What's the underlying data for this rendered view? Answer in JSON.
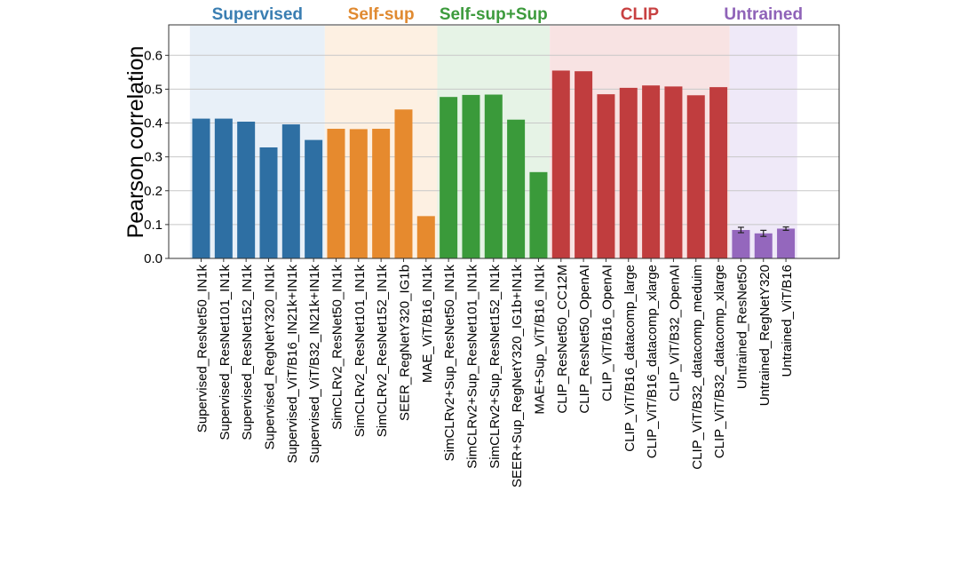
{
  "chart_data": {
    "type": "bar",
    "ylabel": "Pearson correlation",
    "ylim": [
      0,
      0.69
    ],
    "yticks": [
      "0.0",
      "0.1",
      "0.2",
      "0.3",
      "0.4",
      "0.5",
      "0.6"
    ],
    "grid": "horizontal",
    "groups": [
      {
        "name": "Supervised",
        "color": "#2e6fa3",
        "band_color": "#e8f0f8",
        "title_color": "#3a7eb2",
        "bars": [
          {
            "label": "Supervised_ResNet50_IN1k",
            "value": 0.413
          },
          {
            "label": "Supervised_ResNet101_IN1k",
            "value": 0.413
          },
          {
            "label": "Supervised_ResNet152_IN1k",
            "value": 0.404
          },
          {
            "label": "Supervised_RegNetY320_IN1k",
            "value": 0.328
          },
          {
            "label": "Supervised_ViT/B16_IN21k+IN1k",
            "value": 0.396
          },
          {
            "label": "Supervised_ViT/B32_IN21k+IN1k",
            "value": 0.35
          }
        ]
      },
      {
        "name": "Self-sup",
        "color": "#e68a2e",
        "band_color": "#fdf0e2",
        "title_color": "#e08a31",
        "bars": [
          {
            "label": "SimCLRv2_ResNet50_IN1k",
            "value": 0.383
          },
          {
            "label": "SimCLRv2_ResNet101_IN1k",
            "value": 0.382
          },
          {
            "label": "SimCLRv2_ResNet152_IN1k",
            "value": 0.383
          },
          {
            "label": "SEER_RegNetY320_IG1b",
            "value": 0.44
          },
          {
            "label": "MAE_ViT/B16_IN1k",
            "value": 0.125
          }
        ]
      },
      {
        "name": "Self-sup+Sup",
        "color": "#3a9a3a",
        "band_color": "#e6f3e6",
        "title_color": "#3d9b3d",
        "bars": [
          {
            "label": "SimCLRv2+Sup_ResNet50_IN1k",
            "value": 0.477
          },
          {
            "label": "SimCLRv2+Sup_ResNet101_IN1k",
            "value": 0.483
          },
          {
            "label": "SimCLRv2+Sup_ResNet152_IN1k",
            "value": 0.484
          },
          {
            "label": "SEER+Sup_RegNetY320_IG1b+IN1k",
            "value": 0.41
          },
          {
            "label": "MAE+Sup_ViT/B16_IN1k",
            "value": 0.255
          }
        ]
      },
      {
        "name": "CLIP",
        "color": "#c03d3e",
        "band_color": "#f8e3e3",
        "title_color": "#c84142",
        "bars": [
          {
            "label": "CLIP_ResNet50_CC12M",
            "value": 0.555
          },
          {
            "label": "CLIP_ResNet50_OpenAI",
            "value": 0.553
          },
          {
            "label": "CLIP_ViT/B16_OpenAI",
            "value": 0.485
          },
          {
            "label": "CLIP_ViT/B16_datacomp_large",
            "value": 0.504
          },
          {
            "label": "CLIP_ViT/B16_datacomp_xlarge",
            "value": 0.511
          },
          {
            "label": "CLIP_ViT/B32_OpenAI",
            "value": 0.508
          },
          {
            "label": "CLIP_ViT/B32_datacomp_meduim",
            "value": 0.482
          },
          {
            "label": "CLIP_ViT/B32_datacomp_xlarge",
            "value": 0.506
          }
        ]
      },
      {
        "name": "Untrained",
        "color": "#9467bd",
        "band_color": "#efe9f8",
        "title_color": "#8f63b8",
        "bars": [
          {
            "label": "Untrained_ResNet50",
            "value": 0.084,
            "err": 0.008
          },
          {
            "label": "Untrained_RegNetY320",
            "value": 0.074,
            "err": 0.009
          },
          {
            "label": "Untrained_ViT/B16",
            "value": 0.088,
            "err": 0.005
          }
        ]
      }
    ]
  }
}
